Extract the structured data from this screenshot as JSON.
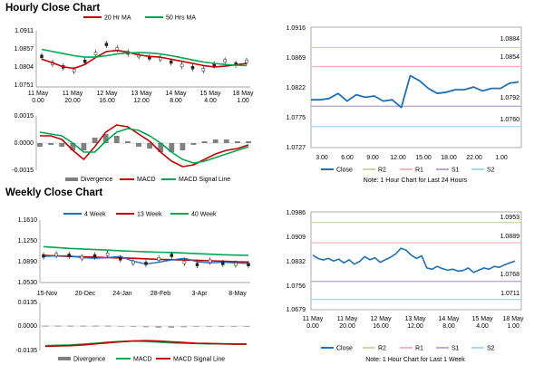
{
  "colors": {
    "price": "#000000",
    "ma_short": "#c00000",
    "ma_long": "#00a651",
    "ma_mid": "#00a651",
    "ma_4w": "#1f6fc0",
    "close": "#1f6fb4",
    "r2": "#c6d9a0",
    "r1": "#f2b6b6",
    "s1": "#b9a9d4",
    "s2": "#a6d9f0",
    "divergence": "#808080",
    "macd": "#c00000",
    "signal": "#00a651"
  },
  "hourly": {
    "title": "Hourly Close Chart",
    "price": {
      "legend": [
        "20 Hr MA",
        "50 Hrs MA"
      ],
      "yticks": [
        "1.0911",
        "1.0857",
        "1.0804",
        "1.0751"
      ],
      "ylim": [
        1.0751,
        1.0911
      ],
      "xticks": [
        [
          "11 May",
          "0.00"
        ],
        [
          "11 May",
          "20.00"
        ],
        [
          "12 May",
          "16.00"
        ],
        [
          "13 May",
          "12.00"
        ],
        [
          "14 May",
          "8.00"
        ],
        [
          "15 May",
          "4.00"
        ],
        [
          "18 May",
          "1.00"
        ]
      ]
    },
    "macd": {
      "yticks": [
        "0.0015",
        "0.0000",
        "-0.0015"
      ],
      "ylim": [
        -0.0015,
        0.0015
      ],
      "legend": [
        "Divergence",
        "MACD",
        "MACD Signal Line"
      ]
    },
    "close24": {
      "yticks": [
        "1.0916",
        "1.0869",
        "1.0822",
        "1.0775",
        "1.0727"
      ],
      "ylim": [
        1.0727,
        1.0916
      ],
      "xticks": [
        "3.00",
        "6.00",
        "9.00",
        "12.00",
        "15.00",
        "18.00",
        "22.00",
        "1.00"
      ],
      "levels": {
        "R2": 1.0884,
        "R1": 1.0854,
        "S1": 1.0792,
        "S2": 1.076
      },
      "level_labels": {
        "R2": "1.0884",
        "R1": "1.0854",
        "S1": "1.0792",
        "S2": "1.0760"
      },
      "legend": [
        "Close",
        "R2",
        "R1",
        "S1",
        "S2"
      ],
      "note": "Note: 1 Hour Chart for Last 24 Hours"
    }
  },
  "weekly": {
    "title": "Weekly Close Chart",
    "price": {
      "legend": [
        "4 Week",
        "13 Week",
        "40 Week"
      ],
      "yticks": [
        "1.1610",
        "1.1250",
        "1.0890",
        "1.0530"
      ],
      "ylim": [
        1.053,
        1.161
      ],
      "xticks": [
        "15-Nov",
        "20-Dec",
        "24-Jan",
        "28-Feb",
        "3-Apr",
        "8-May"
      ]
    },
    "macd": {
      "yticks": [
        "0.0135",
        "0.0000",
        "-0.0135"
      ],
      "ylim": [
        -0.0135,
        0.0135
      ],
      "legend": [
        "Divergence",
        "MACD",
        "MACD Signal Line"
      ]
    },
    "close1w": {
      "yticks": [
        "1.0986",
        "1.0909",
        "1.0832",
        "1.0756",
        "1.0679"
      ],
      "ylim": [
        1.0679,
        1.0986
      ],
      "xticks": [
        [
          "11 May",
          "0.00"
        ],
        [
          "11 May",
          "20.00"
        ],
        [
          "12 May",
          "16.00"
        ],
        [
          "13 May",
          "12.00"
        ],
        [
          "14 May",
          "8.00"
        ],
        [
          "15 May",
          "4.00"
        ],
        [
          "18 May",
          "1.00"
        ]
      ],
      "levels": {
        "R2": 1.0953,
        "R1": 1.0889,
        "S1": 1.0768,
        "S2": 1.0711
      },
      "level_labels": {
        "R2": "1.0953",
        "R1": "1.0889",
        "S1": "1.0768",
        "S2": "1.0711"
      },
      "legend": [
        "Close",
        "R2",
        "R1",
        "S1",
        "S2"
      ],
      "note": "Note: 1 Hour Chart for Last 1 Week"
    }
  },
  "chart_data": [
    {
      "type": "line",
      "name": "hourly-price",
      "title": "Hourly Close Chart",
      "series": [
        {
          "name": "20 Hr MA",
          "values": [
            1.083,
            1.082,
            1.0808,
            1.0804,
            1.0815,
            1.0835,
            1.0852,
            1.0855,
            1.085,
            1.0842,
            1.0838,
            1.0836,
            1.083,
            1.0824,
            1.0818,
            1.0812,
            1.0808,
            1.081,
            1.0814,
            1.0818
          ]
        },
        {
          "name": "50 Hrs MA",
          "values": [
            1.0858,
            1.0852,
            1.0846,
            1.084,
            1.0836,
            1.0836,
            1.084,
            1.0845,
            1.0848,
            1.0849,
            1.0848,
            1.0845,
            1.084,
            1.0834,
            1.0828,
            1.0822,
            1.0818,
            1.0815,
            1.0813,
            1.0812
          ]
        },
        {
          "name": "Close",
          "values": [
            1.0838,
            1.0818,
            1.0808,
            1.0798,
            1.0824,
            1.0846,
            1.0872,
            1.086,
            1.0848,
            1.084,
            1.0834,
            1.0832,
            1.0822,
            1.0812,
            1.0806,
            1.08,
            1.0814,
            1.0825,
            1.0816,
            1.0824
          ]
        }
      ]
    },
    {
      "type": "line",
      "name": "hourly-macd",
      "series": [
        {
          "name": "MACD",
          "values": [
            0.0004,
            0.0004,
            0.0002,
            -0.0004,
            -0.0009,
            -0.0002,
            0.0006,
            0.001,
            0.0009,
            0.0005,
            0.0001,
            -0.0005,
            -0.001,
            -0.0013,
            -0.0012,
            -0.0009,
            -0.0006,
            -0.0004,
            -0.0003,
            -0.0001
          ]
        },
        {
          "name": "MACD Signal Line",
          "values": [
            0.0006,
            0.0005,
            0.0004,
            0.0,
            -0.0005,
            -0.0005,
            0.0001,
            0.0006,
            0.0008,
            0.0007,
            0.0004,
            0.0,
            -0.0005,
            -0.0009,
            -0.0011,
            -0.001,
            -0.0008,
            -0.0006,
            -0.0004,
            -0.0002
          ]
        },
        {
          "name": "Divergence",
          "values": [
            -0.0002,
            -0.0001,
            -0.0002,
            -0.0004,
            -0.0004,
            0.0003,
            0.0005,
            0.0004,
            0.0001,
            -0.0002,
            -0.0003,
            -0.0005,
            -0.0005,
            -0.0004,
            -0.0001,
            0.0001,
            0.0002,
            0.0002,
            0.0001,
            0.0001
          ]
        }
      ]
    },
    {
      "type": "line",
      "name": "hourly-close-24h",
      "series": [
        {
          "name": "Close",
          "values": [
            1.0802,
            1.0802,
            1.0804,
            1.0812,
            1.08,
            1.081,
            1.0806,
            1.0808,
            1.08,
            1.0802,
            1.079,
            1.084,
            1.0832,
            1.082,
            1.0812,
            1.0814,
            1.0818,
            1.0818,
            1.0822,
            1.0816,
            1.082,
            1.082,
            1.0828,
            1.083
          ]
        }
      ]
    },
    {
      "type": "line",
      "name": "weekly-price",
      "title": "Weekly Close Chart",
      "series": [
        {
          "name": "4 Week",
          "values": [
            1.098,
            1.099,
            1.0995,
            1.096,
            1.095,
            1.096,
            1.098,
            1.09,
            1.085,
            1.088,
            1.092,
            1.095,
            1.089,
            1.087,
            1.088,
            1.087,
            1.086
          ]
        },
        {
          "name": "13 Week",
          "values": [
            1.1,
            1.099,
            1.098,
            1.0975,
            1.097,
            1.096,
            1.0955,
            1.095,
            1.094,
            1.093,
            1.0925,
            1.092,
            1.0915,
            1.0905,
            1.09,
            1.089,
            1.0885
          ]
        },
        {
          "name": "40 Week",
          "values": [
            1.115,
            1.1135,
            1.112,
            1.111,
            1.11,
            1.109,
            1.108,
            1.107,
            1.106,
            1.1055,
            1.105,
            1.104,
            1.103,
            1.102,
            1.101,
            1.1005,
            1.1
          ]
        },
        {
          "name": "Close",
          "values": [
            1.099,
            1.101,
            1.1,
            1.096,
            1.099,
            1.102,
            1.094,
            1.088,
            1.086,
            1.094,
            1.1,
            1.088,
            1.084,
            1.09,
            1.086,
            1.085,
            1.084
          ]
        }
      ]
    },
    {
      "type": "line",
      "name": "weekly-macd",
      "series": [
        {
          "name": "MACD",
          "values": [
            -0.0108,
            -0.0106,
            -0.0104,
            -0.01,
            -0.0094,
            -0.0088,
            -0.0084,
            -0.0082,
            -0.0084,
            -0.0088,
            -0.0092,
            -0.0094,
            -0.0096,
            -0.0098,
            -0.0098,
            -0.01,
            -0.01
          ]
        },
        {
          "name": "MACD Signal Line",
          "values": [
            -0.0112,
            -0.011,
            -0.0108,
            -0.0104,
            -0.0098,
            -0.0092,
            -0.0086,
            -0.0082,
            -0.008,
            -0.0082,
            -0.0086,
            -0.009,
            -0.0094,
            -0.0096,
            -0.0098,
            -0.0099,
            -0.01
          ]
        },
        {
          "name": "Divergence",
          "values": [
            0.0004,
            0.0004,
            0.0004,
            0.0004,
            0.0004,
            0.0004,
            0.0002,
            0.0,
            -0.0004,
            -0.0006,
            -0.0006,
            -0.0004,
            -0.0002,
            -0.0002,
            0.0,
            -0.0001,
            0.0
          ]
        }
      ]
    },
    {
      "type": "line",
      "name": "weekly-close-1w",
      "series": [
        {
          "name": "Close",
          "values": [
            1.085,
            1.084,
            1.0835,
            1.084,
            1.0832,
            1.0838,
            1.0826,
            1.0836,
            1.0822,
            1.083,
            1.0846,
            1.0836,
            1.0842,
            1.0828,
            1.0836,
            1.0844,
            1.0854,
            1.0872,
            1.0866,
            1.085,
            1.084,
            1.0848,
            1.081,
            1.0806,
            1.0815,
            1.0808,
            1.0803,
            1.0806,
            1.08,
            1.0802,
            1.081,
            1.0796,
            1.0803,
            1.081,
            1.0806,
            1.0815,
            1.0812,
            1.082,
            1.0826,
            1.0832
          ]
        }
      ]
    }
  ]
}
